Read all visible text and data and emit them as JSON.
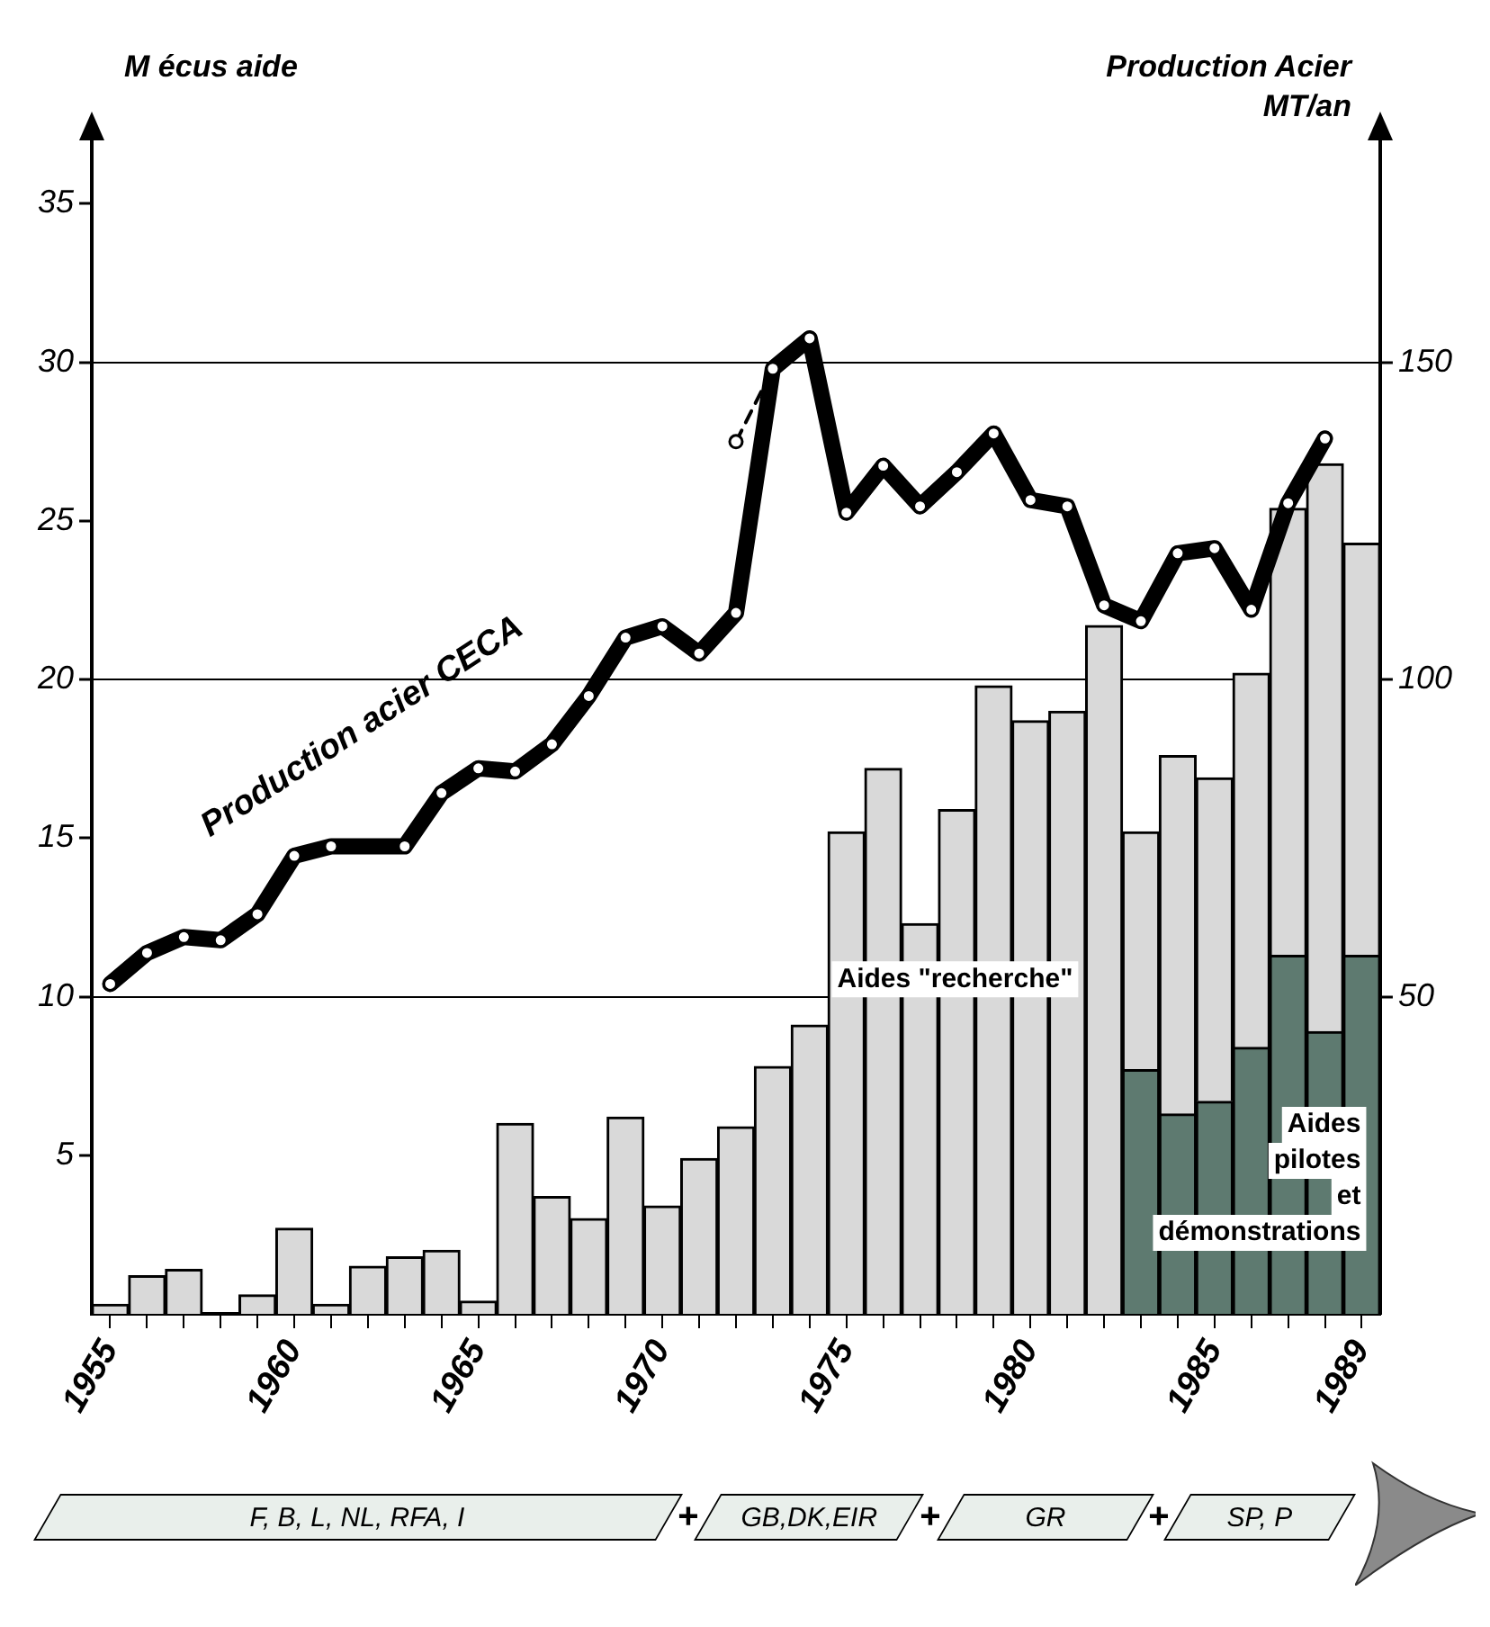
{
  "chart_data": {
    "type": "bar",
    "ylabel": "M écus aide",
    "y2label": "Production Acier MT/an",
    "categories": [
      "1955",
      null,
      null,
      null,
      null,
      "1960",
      null,
      null,
      null,
      null,
      "1965",
      null,
      null,
      null,
      null,
      "1970",
      null,
      null,
      null,
      null,
      "1975",
      null,
      null,
      null,
      null,
      "1980",
      null,
      null,
      null,
      null,
      "1985",
      null,
      null,
      null,
      "1989"
    ],
    "series": [
      {
        "name": "Aides pilotes et démonstrations",
        "color": "#5e7a70",
        "values": [
          null,
          null,
          null,
          null,
          null,
          null,
          null,
          null,
          null,
          null,
          null,
          null,
          null,
          null,
          null,
          null,
          null,
          null,
          null,
          null,
          null,
          null,
          null,
          null,
          null,
          null,
          null,
          null,
          7.7,
          6.3,
          6.7,
          8.4,
          11.3,
          8.9,
          11.3
        ]
      },
      {
        "name": "Aides \"recherche\"",
        "color": "#d9d9d9",
        "values": [
          0.3,
          1.2,
          1.4,
          null,
          0.6,
          2.7,
          0.3,
          1.5,
          1.8,
          2.0,
          0.4,
          6.0,
          3.7,
          3.0,
          6.2,
          3.4,
          4.9,
          5.9,
          7.8,
          9.1,
          15.2,
          17.2,
          12.3,
          15.9,
          19.8,
          18.7,
          19.0,
          21.7,
          7.5,
          11.3,
          10.2,
          11.8,
          14.1,
          17.9,
          13.0
        ]
      },
      {
        "name": "Production acier CECA",
        "type": "line",
        "axis": "y2",
        "color": "#000000",
        "values": [
          52.0,
          56.9,
          59.4,
          58.9,
          63.0,
          72.2,
          73.7,
          null,
          73.7,
          82.1,
          86.0,
          85.5,
          89.8,
          97.4,
          106.6,
          108.4,
          104.1,
          110.5,
          149.0,
          153.8,
          126.3,
          133.7,
          127.3,
          132.7,
          138.8,
          128.3,
          127.3,
          111.7,
          109.2,
          119.9,
          120.7,
          111.0,
          127.8,
          138.0,
          null
        ]
      },
      {
        "type": "line",
        "axis": "y2",
        "color": "#000000",
        "line_style": "dashed",
        "values": [
          null,
          null,
          null,
          null,
          null,
          null,
          null,
          null,
          null,
          null,
          null,
          null,
          null,
          null,
          null,
          null,
          null,
          137.5,
          149.0,
          null,
          null,
          null,
          null,
          null,
          null,
          null,
          null,
          null,
          null,
          null,
          null,
          null,
          null,
          null,
          null
        ]
      }
    ],
    "stacked": true,
    "marker": "circle",
    "ylim": [
      0,
      37
    ],
    "yticks": [
      5,
      10,
      15,
      20,
      25,
      30,
      35
    ],
    "y2lim": [
      0,
      185
    ],
    "y2ticks": [
      50,
      100,
      150
    ],
    "grid": "y2",
    "annotations": [
      "F, B, L, NL, RFA, I",
      "+",
      "GB,DK,EIR",
      "+",
      "GR",
      "+",
      "SP, P"
    ]
  }
}
